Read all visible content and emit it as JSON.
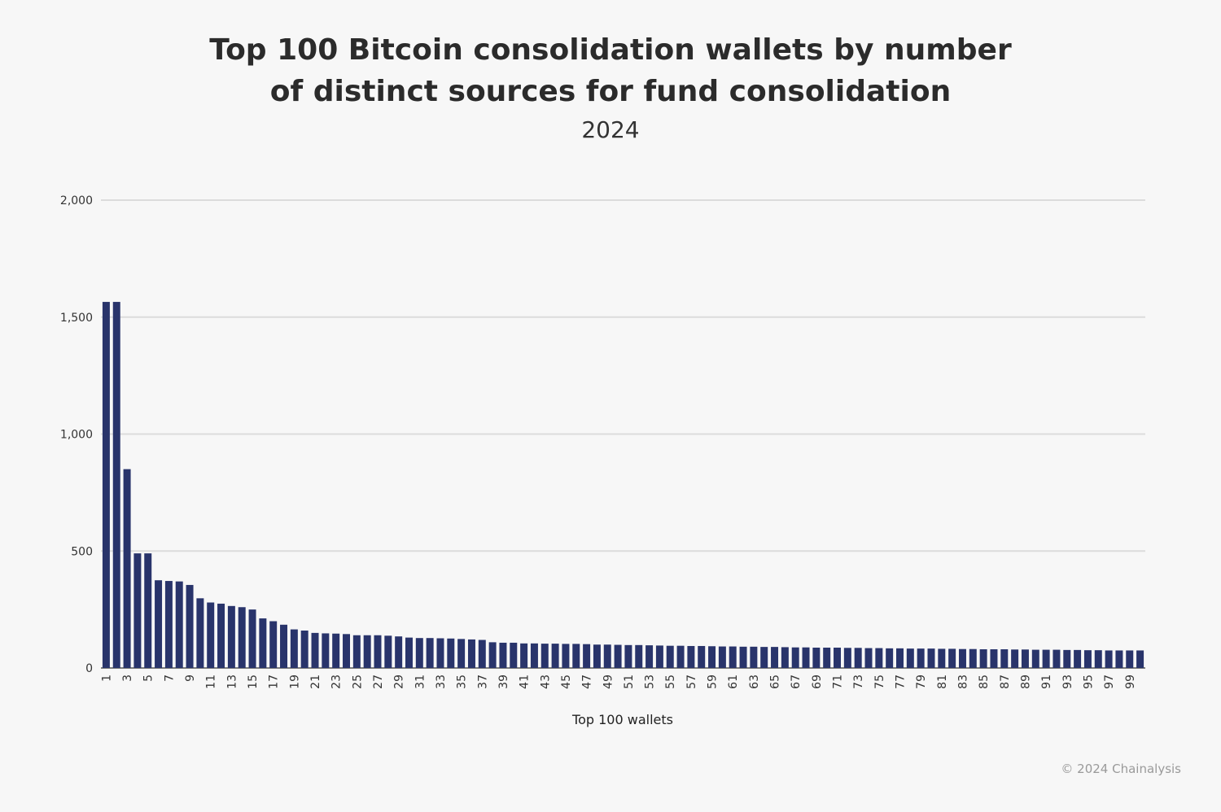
{
  "chart_data": {
    "type": "bar",
    "title_lines": [
      "Top 100 Bitcoin consolidation wallets by number",
      "of distinct sources for fund consolidation"
    ],
    "subtitle": "2024",
    "xlabel": "Top 100 wallets",
    "ylabel": "",
    "ylim": [
      0,
      2000
    ],
    "yticks": [
      0,
      500,
      1000,
      1500,
      2000
    ],
    "ytick_labels": [
      "0",
      "500",
      "1,000",
      "1,500",
      "2,000"
    ],
    "categories": [
      1,
      2,
      3,
      4,
      5,
      6,
      7,
      8,
      9,
      10,
      11,
      12,
      13,
      14,
      15,
      16,
      17,
      18,
      19,
      20,
      21,
      22,
      23,
      24,
      25,
      26,
      27,
      28,
      29,
      30,
      31,
      32,
      33,
      34,
      35,
      36,
      37,
      38,
      39,
      40,
      41,
      42,
      43,
      44,
      45,
      46,
      47,
      48,
      49,
      50,
      51,
      52,
      53,
      54,
      55,
      56,
      57,
      58,
      59,
      60,
      61,
      62,
      63,
      64,
      65,
      66,
      67,
      68,
      69,
      70,
      71,
      72,
      73,
      74,
      75,
      76,
      77,
      78,
      79,
      80,
      81,
      82,
      83,
      84,
      85,
      86,
      87,
      88,
      89,
      90,
      91,
      92,
      93,
      94,
      95,
      96,
      97,
      98,
      99,
      100
    ],
    "xtick_labels": [
      "1",
      "3",
      "5",
      "7",
      "9",
      "11",
      "13",
      "15",
      "17",
      "19",
      "21",
      "23",
      "25",
      "27",
      "29",
      "31",
      "33",
      "35",
      "37",
      "39",
      "41",
      "43",
      "45",
      "47",
      "49",
      "51",
      "53",
      "55",
      "57",
      "59",
      "61",
      "63",
      "65",
      "67",
      "69",
      "71",
      "73",
      "75",
      "77",
      "79",
      "81",
      "83",
      "85",
      "87",
      "89",
      "91",
      "93",
      "95",
      "97",
      "99"
    ],
    "values": [
      1565,
      1565,
      850,
      490,
      490,
      375,
      372,
      370,
      355,
      298,
      280,
      275,
      265,
      260,
      250,
      212,
      200,
      185,
      165,
      160,
      150,
      148,
      147,
      145,
      140,
      140,
      140,
      138,
      135,
      130,
      128,
      128,
      127,
      126,
      124,
      122,
      120,
      110,
      108,
      108,
      105,
      105,
      104,
      104,
      103,
      103,
      102,
      100,
      100,
      99,
      98,
      98,
      97,
      96,
      95,
      95,
      94,
      94,
      93,
      92,
      92,
      91,
      91,
      90,
      90,
      89,
      88,
      88,
      87,
      87,
      87,
      86,
      86,
      85,
      85,
      84,
      84,
      83,
      83,
      83,
      82,
      82,
      81,
      81,
      80,
      80,
      80,
      79,
      79,
      78,
      78,
      78,
      77,
      77,
      76,
      76,
      75,
      75,
      75,
      75
    ],
    "grid": true,
    "legend": "none",
    "bar_color": "#29346b",
    "grid_color": "#dcdcdc"
  },
  "footer": {
    "credit": "© 2024 Chainalysis"
  }
}
